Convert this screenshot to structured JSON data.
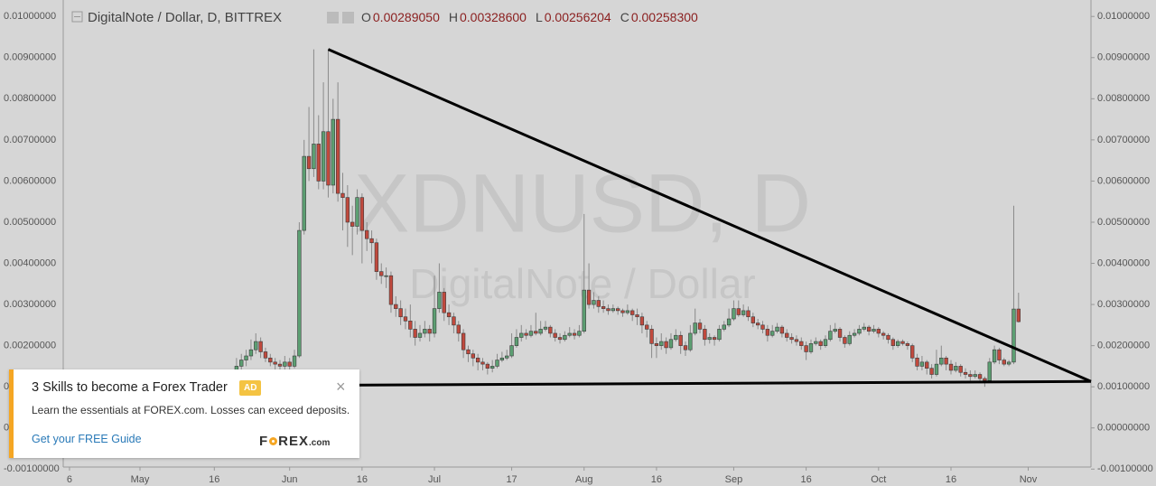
{
  "header": {
    "symbol": "DigitalNote / Dollar, D, BITTREX",
    "ohlc": [
      {
        "key": "O",
        "value": "0.00289050"
      },
      {
        "key": "H",
        "value": "0.00328600"
      },
      {
        "key": "L",
        "value": "0.00256204"
      },
      {
        "key": "C",
        "value": "0.00258300"
      }
    ]
  },
  "chart_data": {
    "type": "candlestick",
    "watermark": "XDNUSD, D",
    "watermark_subtitle": "DigitalNote / Dollar",
    "up_color": "#5c9f72",
    "down_color": "#c0493d",
    "line_color": "#000000",
    "ylim": [
      -0.00095,
      0.0104
    ],
    "xlim": [
      -35.9,
      177
    ],
    "yticks": [
      {
        "value": 0.01,
        "label": "0.01000000"
      },
      {
        "value": 0.009,
        "label": "0.00900000"
      },
      {
        "value": 0.008,
        "label": "0.00800000"
      },
      {
        "value": 0.007,
        "label": "0.00700000"
      },
      {
        "value": 0.006,
        "label": "0.00600000"
      },
      {
        "value": 0.005,
        "label": "0.00500000"
      },
      {
        "value": 0.004,
        "label": "0.00400000"
      },
      {
        "value": 0.003,
        "label": "0.00300000"
      },
      {
        "value": 0.002,
        "label": "0.00200000"
      },
      {
        "value": 0.001,
        "label": "0.00100000"
      },
      {
        "value": 0,
        "label": "0.00000000"
      },
      {
        "value": -0.001,
        "label": "-0.00100000"
      }
    ],
    "xticks": [
      {
        "value": -34.6,
        "label": "6"
      },
      {
        "value": -20,
        "label": "May"
      },
      {
        "value": -4.6,
        "label": "16"
      },
      {
        "value": 11,
        "label": "Jun"
      },
      {
        "value": 26,
        "label": "16"
      },
      {
        "value": 41,
        "label": "Jul"
      },
      {
        "value": 57,
        "label": "17"
      },
      {
        "value": 72,
        "label": "Aug"
      },
      {
        "value": 87,
        "label": "16"
      },
      {
        "value": 103,
        "label": "Sep"
      },
      {
        "value": 118,
        "label": "16"
      },
      {
        "value": 133,
        "label": "Oct"
      },
      {
        "value": 148,
        "label": "16"
      },
      {
        "value": 164,
        "label": "Nov"
      }
    ],
    "trendlines": [
      {
        "x": [
          19,
          177
        ],
        "y": [
          0.0092,
          0.00113
        ]
      },
      {
        "x": [
          5,
          177
        ],
        "y": [
          0.00103,
          0.00113
        ]
      }
    ],
    "ohlc": [
      [
        0.0014,
        0.0017,
        0.0013,
        0.0015
      ],
      [
        0.0015,
        0.0018,
        0.0014,
        0.00165
      ],
      [
        0.00165,
        0.0019,
        0.0015,
        0.00175
      ],
      [
        0.00175,
        0.00215,
        0.00165,
        0.0019
      ],
      [
        0.0019,
        0.0023,
        0.0018,
        0.0021
      ],
      [
        0.0021,
        0.0022,
        0.0017,
        0.00185
      ],
      [
        0.00185,
        0.00195,
        0.0016,
        0.0017
      ],
      [
        0.0017,
        0.0018,
        0.0015,
        0.0016
      ],
      [
        0.0016,
        0.0017,
        0.0014,
        0.00155
      ],
      [
        0.00155,
        0.00165,
        0.0014,
        0.0015
      ],
      [
        0.0015,
        0.00175,
        0.0014,
        0.0016
      ],
      [
        0.0016,
        0.0017,
        0.0014,
        0.0015
      ],
      [
        0.0015,
        0.0019,
        0.00145,
        0.00175
      ],
      [
        0.00175,
        0.005,
        0.0017,
        0.0048
      ],
      [
        0.0048,
        0.007,
        0.0047,
        0.0066
      ],
      [
        0.0066,
        0.0078,
        0.006,
        0.0063
      ],
      [
        0.0063,
        0.0092,
        0.0061,
        0.0069
      ],
      [
        0.0069,
        0.0076,
        0.0058,
        0.006
      ],
      [
        0.006,
        0.0084,
        0.0058,
        0.0072
      ],
      [
        0.0072,
        0.0092,
        0.0056,
        0.0059
      ],
      [
        0.0059,
        0.008,
        0.0057,
        0.0075
      ],
      [
        0.0075,
        0.0084,
        0.0055,
        0.0057
      ],
      [
        0.0057,
        0.0062,
        0.0048,
        0.0056
      ],
      [
        0.0056,
        0.0059,
        0.0044,
        0.005
      ],
      [
        0.005,
        0.0054,
        0.0042,
        0.0049
      ],
      [
        0.0049,
        0.0058,
        0.0047,
        0.0056
      ],
      [
        0.0056,
        0.0057,
        0.004,
        0.0048
      ],
      [
        0.0048,
        0.005,
        0.0043,
        0.0046
      ],
      [
        0.0046,
        0.0048,
        0.004,
        0.0045
      ],
      [
        0.0045,
        0.0046,
        0.0036,
        0.0038
      ],
      [
        0.0038,
        0.004,
        0.0035,
        0.0037
      ],
      [
        0.0037,
        0.0039,
        0.0034,
        0.0037
      ],
      [
        0.0037,
        0.0038,
        0.0028,
        0.003
      ],
      [
        0.003,
        0.0032,
        0.0027,
        0.0029
      ],
      [
        0.0029,
        0.0031,
        0.0025,
        0.0027
      ],
      [
        0.0027,
        0.0029,
        0.0024,
        0.0026
      ],
      [
        0.0026,
        0.003,
        0.0022,
        0.0024
      ],
      [
        0.0024,
        0.0026,
        0.002,
        0.0022
      ],
      [
        0.0022,
        0.0025,
        0.0021,
        0.0023
      ],
      [
        0.0023,
        0.0026,
        0.0022,
        0.0024
      ],
      [
        0.0024,
        0.0025,
        0.0021,
        0.0023
      ],
      [
        0.0023,
        0.0037,
        0.0022,
        0.0029
      ],
      [
        0.0029,
        0.004,
        0.0028,
        0.0033
      ],
      [
        0.0033,
        0.0034,
        0.0026,
        0.0028
      ],
      [
        0.0028,
        0.003,
        0.0025,
        0.0027
      ],
      [
        0.0027,
        0.0028,
        0.0023,
        0.0025
      ],
      [
        0.0025,
        0.0026,
        0.0021,
        0.0023
      ],
      [
        0.0023,
        0.0024,
        0.0017,
        0.0019
      ],
      [
        0.0019,
        0.002,
        0.0016,
        0.0018
      ],
      [
        0.0018,
        0.0019,
        0.0015,
        0.0017
      ],
      [
        0.0017,
        0.0018,
        0.0014,
        0.0016
      ],
      [
        0.0016,
        0.0017,
        0.0014,
        0.00155
      ],
      [
        0.00155,
        0.0016,
        0.0013,
        0.00145
      ],
      [
        0.00145,
        0.00165,
        0.00135,
        0.0015
      ],
      [
        0.0015,
        0.0018,
        0.00145,
        0.00165
      ],
      [
        0.00165,
        0.00185,
        0.0016,
        0.0017
      ],
      [
        0.0017,
        0.0019,
        0.00165,
        0.00175
      ],
      [
        0.00175,
        0.0023,
        0.0017,
        0.002
      ],
      [
        0.002,
        0.0024,
        0.00195,
        0.0022
      ],
      [
        0.0022,
        0.0025,
        0.0021,
        0.0023
      ],
      [
        0.0023,
        0.0024,
        0.00215,
        0.00225
      ],
      [
        0.00225,
        0.0025,
        0.0022,
        0.00235
      ],
      [
        0.00235,
        0.0028,
        0.00225,
        0.0023
      ],
      [
        0.0023,
        0.0026,
        0.00225,
        0.0024
      ],
      [
        0.0024,
        0.0026,
        0.00235,
        0.00245
      ],
      [
        0.00245,
        0.0025,
        0.0022,
        0.0023
      ],
      [
        0.0023,
        0.0024,
        0.0021,
        0.0022
      ],
      [
        0.0022,
        0.0023,
        0.00205,
        0.00215
      ],
      [
        0.00215,
        0.00235,
        0.0021,
        0.00225
      ],
      [
        0.00225,
        0.00245,
        0.0022,
        0.0023
      ],
      [
        0.0023,
        0.0024,
        0.00215,
        0.00225
      ],
      [
        0.00225,
        0.0025,
        0.0022,
        0.00235
      ],
      [
        0.00235,
        0.0052,
        0.0023,
        0.00335
      ],
      [
        0.00335,
        0.004,
        0.0029,
        0.003
      ],
      [
        0.003,
        0.0033,
        0.0029,
        0.0031
      ],
      [
        0.0031,
        0.0032,
        0.0028,
        0.00295
      ],
      [
        0.00295,
        0.0031,
        0.0028,
        0.0029
      ],
      [
        0.0029,
        0.003,
        0.00275,
        0.00285
      ],
      [
        0.00285,
        0.003,
        0.0028,
        0.0029
      ],
      [
        0.0029,
        0.00295,
        0.00275,
        0.00285
      ],
      [
        0.00285,
        0.0029,
        0.0027,
        0.0028
      ],
      [
        0.0028,
        0.003,
        0.00275,
        0.00285
      ],
      [
        0.00285,
        0.0029,
        0.0026,
        0.00275
      ],
      [
        0.00275,
        0.0029,
        0.0025,
        0.0027
      ],
      [
        0.0027,
        0.0028,
        0.0023,
        0.0025
      ],
      [
        0.0025,
        0.0026,
        0.0022,
        0.0024
      ],
      [
        0.0024,
        0.0025,
        0.0017,
        0.00205
      ],
      [
        0.00205,
        0.0022,
        0.0017,
        0.002
      ],
      [
        0.002,
        0.0023,
        0.0019,
        0.0021
      ],
      [
        0.0021,
        0.0022,
        0.0018,
        0.00195
      ],
      [
        0.00195,
        0.0023,
        0.0019,
        0.00215
      ],
      [
        0.00215,
        0.0024,
        0.0021,
        0.00225
      ],
      [
        0.00225,
        0.00235,
        0.0018,
        0.002
      ],
      [
        0.002,
        0.0021,
        0.00175,
        0.0019
      ],
      [
        0.0019,
        0.0025,
        0.00185,
        0.0023
      ],
      [
        0.0023,
        0.0029,
        0.00225,
        0.00255
      ],
      [
        0.00255,
        0.00265,
        0.0023,
        0.0024
      ],
      [
        0.0024,
        0.0025,
        0.002,
        0.00215
      ],
      [
        0.00215,
        0.0023,
        0.00205,
        0.0022
      ],
      [
        0.0022,
        0.00225,
        0.002,
        0.00215
      ],
      [
        0.00215,
        0.0025,
        0.0021,
        0.0024
      ],
      [
        0.0024,
        0.0026,
        0.00235,
        0.0025
      ],
      [
        0.0025,
        0.0029,
        0.00245,
        0.00265
      ],
      [
        0.00265,
        0.0031,
        0.0026,
        0.0029
      ],
      [
        0.0029,
        0.0031,
        0.0027,
        0.00275
      ],
      [
        0.00275,
        0.003,
        0.0027,
        0.00285
      ],
      [
        0.00285,
        0.00295,
        0.0026,
        0.0027
      ],
      [
        0.0027,
        0.0028,
        0.00245,
        0.00255
      ],
      [
        0.00255,
        0.00265,
        0.0024,
        0.0025
      ],
      [
        0.0025,
        0.0026,
        0.0023,
        0.0024
      ],
      [
        0.0024,
        0.0025,
        0.0021,
        0.00225
      ],
      [
        0.00225,
        0.0025,
        0.0022,
        0.00235
      ],
      [
        0.00235,
        0.00255,
        0.0023,
        0.00245
      ],
      [
        0.00245,
        0.0025,
        0.0022,
        0.0023
      ],
      [
        0.0023,
        0.0024,
        0.0021,
        0.0022
      ],
      [
        0.0022,
        0.0023,
        0.00205,
        0.00215
      ],
      [
        0.00215,
        0.00225,
        0.002,
        0.0021
      ],
      [
        0.0021,
        0.0022,
        0.0019,
        0.002
      ],
      [
        0.002,
        0.0021,
        0.00165,
        0.00185
      ],
      [
        0.00185,
        0.00215,
        0.0018,
        0.00205
      ],
      [
        0.00205,
        0.0022,
        0.002,
        0.0021
      ],
      [
        0.0021,
        0.00215,
        0.0019,
        0.002
      ],
      [
        0.002,
        0.00225,
        0.00195,
        0.00215
      ],
      [
        0.00215,
        0.0025,
        0.0021,
        0.00235
      ],
      [
        0.00235,
        0.00255,
        0.0023,
        0.0024
      ],
      [
        0.0024,
        0.00245,
        0.0021,
        0.0022
      ],
      [
        0.0022,
        0.00225,
        0.00195,
        0.00205
      ],
      [
        0.00205,
        0.00235,
        0.002,
        0.00225
      ],
      [
        0.00225,
        0.0024,
        0.0022,
        0.0023
      ],
      [
        0.0023,
        0.0025,
        0.00225,
        0.0024
      ],
      [
        0.0024,
        0.00255,
        0.00235,
        0.00245
      ],
      [
        0.00245,
        0.0025,
        0.00225,
        0.00235
      ],
      [
        0.00235,
        0.0025,
        0.0023,
        0.0024
      ],
      [
        0.0024,
        0.00245,
        0.0022,
        0.0023
      ],
      [
        0.0023,
        0.00235,
        0.00215,
        0.00225
      ],
      [
        0.00225,
        0.0023,
        0.00205,
        0.00215
      ],
      [
        0.00215,
        0.0022,
        0.0019,
        0.002
      ],
      [
        0.002,
        0.00215,
        0.00195,
        0.0021
      ],
      [
        0.0021,
        0.00215,
        0.002,
        0.00205
      ],
      [
        0.00205,
        0.0021,
        0.0019,
        0.002
      ],
      [
        0.002,
        0.00205,
        0.0016,
        0.0017
      ],
      [
        0.0017,
        0.0018,
        0.0014,
        0.0015
      ],
      [
        0.0015,
        0.00175,
        0.0014,
        0.0016
      ],
      [
        0.0016,
        0.00165,
        0.0013,
        0.00145
      ],
      [
        0.00145,
        0.00155,
        0.0012,
        0.0013
      ],
      [
        0.0013,
        0.0019,
        0.00125,
        0.00155
      ],
      [
        0.00155,
        0.002,
        0.0015,
        0.0017
      ],
      [
        0.0017,
        0.00175,
        0.0014,
        0.00155
      ],
      [
        0.00155,
        0.00165,
        0.0013,
        0.0014
      ],
      [
        0.0014,
        0.0016,
        0.00135,
        0.0015
      ],
      [
        0.0015,
        0.00155,
        0.00125,
        0.00135
      ],
      [
        0.00135,
        0.00145,
        0.0012,
        0.0013
      ],
      [
        0.0013,
        0.0014,
        0.00115,
        0.00125
      ],
      [
        0.00125,
        0.0014,
        0.0012,
        0.0013
      ],
      [
        0.0013,
        0.00135,
        0.0011,
        0.0012
      ],
      [
        0.0012,
        0.00125,
        0.001,
        0.00115
      ],
      [
        0.00115,
        0.0017,
        0.0011,
        0.0016
      ],
      [
        0.0016,
        0.002,
        0.00155,
        0.0019
      ],
      [
        0.0019,
        0.00195,
        0.00155,
        0.00165
      ],
      [
        0.00165,
        0.0017,
        0.0015,
        0.00155
      ],
      [
        0.00155,
        0.00165,
        0.0015,
        0.0016
      ],
      [
        0.0016,
        0.0054,
        0.00155,
        0.00289
      ],
      [
        0.0028905,
        0.003286,
        0.00256204,
        0.002583
      ]
    ]
  },
  "ad": {
    "title": "3 Skills to become a Forex Trader",
    "badge": "AD",
    "close": "×",
    "text": "Learn the essentials at FOREX.com. Losses can exceed deposits.",
    "link": "Get your FREE Guide",
    "logo_a": "F",
    "logo_b": "REX",
    "logo_c": ".com"
  }
}
